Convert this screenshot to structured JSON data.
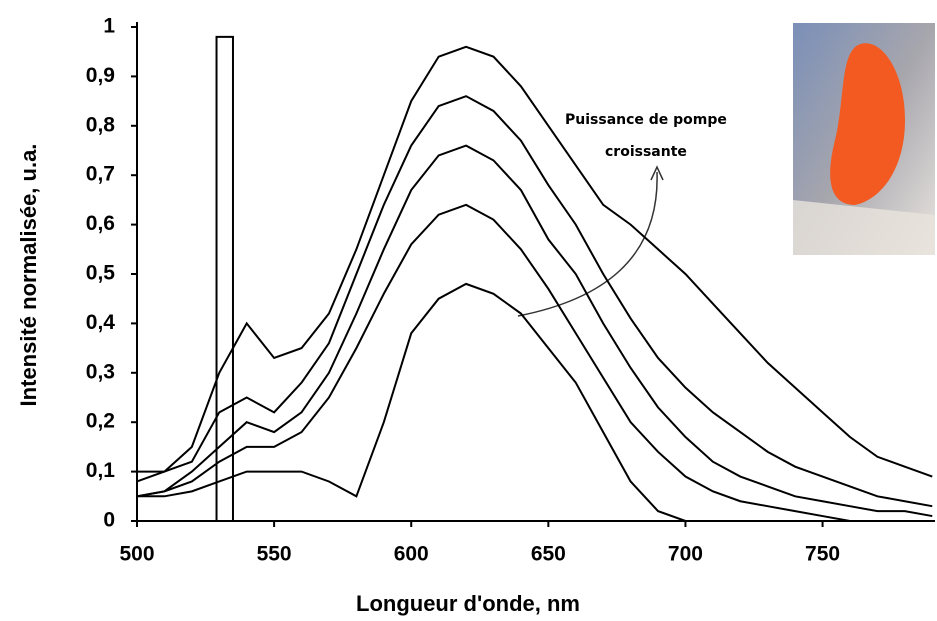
{
  "chart_data": {
    "type": "line",
    "xlabel": "Longueur d'onde, nm",
    "ylabel": "Intensité normalisée, u.a.",
    "annotation": [
      "Puissance de pompe",
      "croissante"
    ],
    "xlim": [
      500,
      791
    ],
    "ylim": [
      0,
      1
    ],
    "xticks": [
      500,
      550,
      600,
      650,
      700,
      750
    ],
    "yticks": [
      0,
      {
        "value": 0.1,
        "label": "0,1"
      },
      {
        "value": 0.2,
        "label": "0,2"
      },
      {
        "value": 0.3,
        "label": "0,3"
      },
      {
        "value": 0.4,
        "label": "0,4"
      },
      {
        "value": 0.5,
        "label": "0,5"
      },
      {
        "value": 0.6,
        "label": "0,6"
      },
      {
        "value": 0.7,
        "label": "0,7"
      },
      {
        "value": 0.8,
        "label": "0,8"
      },
      {
        "value": 0.9,
        "label": "0,9"
      },
      1
    ],
    "x": [
      500,
      510,
      520,
      530,
      540,
      550,
      560,
      570,
      580,
      590,
      600,
      610,
      620,
      630,
      640,
      650,
      660,
      670,
      680,
      690,
      700,
      710,
      720,
      730,
      740,
      750,
      760,
      770,
      780,
      790
    ],
    "series": [
      {
        "color": "#000000",
        "values": [
          0.05,
          0.05,
          0.06,
          0.08,
          0.1,
          0.1,
          0.1,
          0.08,
          0.05,
          0.2,
          0.38,
          0.45,
          0.48,
          0.46,
          0.42,
          0.35,
          0.28,
          0.18,
          0.08,
          0.02,
          0,
          0,
          0,
          0,
          0,
          0,
          0,
          0,
          0,
          0
        ]
      },
      {
        "color": "#000000",
        "values": [
          0.05,
          0.06,
          0.08,
          0.12,
          0.15,
          0.15,
          0.18,
          0.25,
          0.35,
          0.46,
          0.56,
          0.62,
          0.64,
          0.61,
          0.55,
          0.47,
          0.38,
          0.29,
          0.2,
          0.14,
          0.09,
          0.06,
          0.04,
          0.03,
          0.02,
          0.01,
          0,
          0,
          0,
          0
        ]
      },
      {
        "color": "#000000",
        "values": [
          0.05,
          0.06,
          0.1,
          0.15,
          0.2,
          0.18,
          0.22,
          0.3,
          0.42,
          0.55,
          0.67,
          0.74,
          0.76,
          0.73,
          0.67,
          0.57,
          0.5,
          0.4,
          0.31,
          0.23,
          0.17,
          0.12,
          0.09,
          0.07,
          0.05,
          0.04,
          0.03,
          0.02,
          0.02,
          0.01
        ]
      },
      {
        "color": "#000000",
        "values": [
          0.08,
          0.1,
          0.12,
          0.22,
          0.25,
          0.22,
          0.28,
          0.36,
          0.5,
          0.64,
          0.76,
          0.84,
          0.86,
          0.83,
          0.77,
          0.68,
          0.6,
          0.5,
          0.41,
          0.33,
          0.27,
          0.22,
          0.18,
          0.14,
          0.11,
          0.09,
          0.07,
          0.05,
          0.04,
          0.03
        ]
      },
      {
        "color": "#000000",
        "values": [
          0.1,
          0.1,
          0.15,
          0.3,
          0.4,
          0.33,
          0.35,
          0.42,
          0.55,
          0.7,
          0.85,
          0.94,
          0.96,
          0.94,
          0.88,
          0.8,
          0.72,
          0.64,
          0.6,
          0.55,
          0.5,
          0.44,
          0.38,
          0.32,
          0.27,
          0.22,
          0.17,
          0.13,
          0.11,
          0.09
        ]
      },
      {
        "color": "#000000",
        "x": [
          529,
          529,
          535,
          535
        ],
        "values": [
          0,
          0.98,
          0.98,
          0
        ]
      }
    ]
  }
}
